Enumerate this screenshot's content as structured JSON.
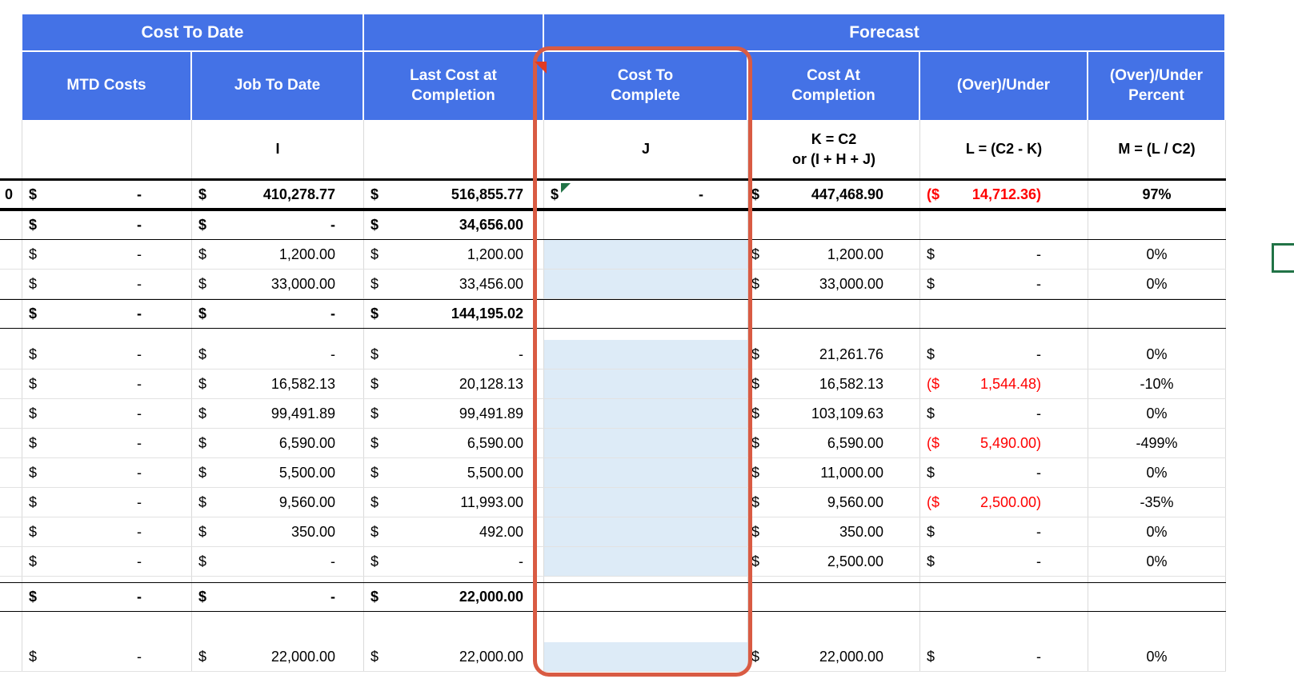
{
  "colors": {
    "header_blue": "#4472E6",
    "cell_blue": "#DDEBF7",
    "annotation_red": "#D95B43",
    "negative_red": "#FF0000",
    "selection_green": "#217346"
  },
  "header": {
    "groups": {
      "cost_to_date": "Cost To Date",
      "forecast": "Forecast"
    },
    "columns": {
      "mtd": "MTD Costs",
      "jtd": "Job To Date",
      "lcac": "Last Cost at\nCompletion",
      "ctc": "Cost To\nComplete",
      "cac": "Cost At\nCompletion",
      "ou": "(Over)/Under",
      "oup": "(Over)/Under\nPercent"
    }
  },
  "formula_row": {
    "i": "I",
    "j": "J",
    "k": "K = C2\nor (I + H + J)",
    "l": "L = (C2 - K)",
    "m": "M = (L / C2)"
  },
  "rows": [
    {
      "type": "total",
      "left": "0",
      "ou_red": true,
      "cells": {
        "mtd": [
          "$",
          "-"
        ],
        "jtd": [
          "$",
          "410,278.77"
        ],
        "lcac": [
          "$",
          "516,855.77"
        ],
        "ctc": [
          "$",
          "-"
        ],
        "cac": [
          "$",
          "447,468.90"
        ],
        "ou": [
          "($",
          "14,712.36)"
        ],
        "pct": "97%"
      }
    },
    {
      "type": "subtotal",
      "cells": {
        "mtd": [
          "$",
          "-"
        ],
        "jtd": [
          "$",
          "-"
        ],
        "lcac": [
          "$",
          "34,656.00"
        ]
      }
    },
    {
      "type": "detail",
      "cells": {
        "mtd": [
          "$",
          "-"
        ],
        "jtd": [
          "$",
          "1,200.00"
        ],
        "lcac": [
          "$",
          "1,200.00"
        ],
        "cac": [
          "$",
          "1,200.00"
        ],
        "ou": [
          "$",
          "-"
        ],
        "pct": "0%"
      }
    },
    {
      "type": "detail",
      "cells": {
        "mtd": [
          "$",
          "-"
        ],
        "jtd": [
          "$",
          "33,000.00"
        ],
        "lcac": [
          "$",
          "33,456.00"
        ],
        "cac": [
          "$",
          "33,000.00"
        ],
        "ou": [
          "$",
          "-"
        ],
        "pct": "0%"
      }
    },
    {
      "type": "subtotal",
      "cells": {
        "mtd": [
          "$",
          "-"
        ],
        "jtd": [
          "$",
          "-"
        ],
        "lcac": [
          "$",
          "144,195.02"
        ]
      }
    },
    {
      "type": "spacer",
      "height": 14
    },
    {
      "type": "detail",
      "cells": {
        "mtd": [
          "$",
          "-"
        ],
        "jtd": [
          "$",
          "-"
        ],
        "lcac": [
          "$",
          "-"
        ],
        "cac": [
          "$",
          "21,261.76"
        ],
        "ou": [
          "$",
          "-"
        ],
        "pct": "0%"
      }
    },
    {
      "type": "detail",
      "ou_red": true,
      "cells": {
        "mtd": [
          "$",
          "-"
        ],
        "jtd": [
          "$",
          "16,582.13"
        ],
        "lcac": [
          "$",
          "20,128.13"
        ],
        "cac": [
          "$",
          "16,582.13"
        ],
        "ou": [
          "($",
          "1,544.48)"
        ],
        "pct": "-10%"
      }
    },
    {
      "type": "detail",
      "cells": {
        "mtd": [
          "$",
          "-"
        ],
        "jtd": [
          "$",
          "99,491.89"
        ],
        "lcac": [
          "$",
          "99,491.89"
        ],
        "cac": [
          "$",
          "103,109.63"
        ],
        "ou": [
          "$",
          "-"
        ],
        "pct": "0%"
      }
    },
    {
      "type": "detail",
      "ou_red": true,
      "cells": {
        "mtd": [
          "$",
          "-"
        ],
        "jtd": [
          "$",
          "6,590.00"
        ],
        "lcac": [
          "$",
          "6,590.00"
        ],
        "cac": [
          "$",
          "6,590.00"
        ],
        "ou": [
          "($",
          "5,490.00)"
        ],
        "pct": "-499%"
      }
    },
    {
      "type": "detail",
      "cells": {
        "mtd": [
          "$",
          "-"
        ],
        "jtd": [
          "$",
          "5,500.00"
        ],
        "lcac": [
          "$",
          "5,500.00"
        ],
        "cac": [
          "$",
          "11,000.00"
        ],
        "ou": [
          "$",
          "-"
        ],
        "pct": "0%"
      }
    },
    {
      "type": "detail",
      "ou_red": true,
      "cells": {
        "mtd": [
          "$",
          "-"
        ],
        "jtd": [
          "$",
          "9,560.00"
        ],
        "lcac": [
          "$",
          "11,993.00"
        ],
        "cac": [
          "$",
          "9,560.00"
        ],
        "ou": [
          "($",
          "2,500.00)"
        ],
        "pct": "-35%"
      }
    },
    {
      "type": "detail",
      "cells": {
        "mtd": [
          "$",
          "-"
        ],
        "jtd": [
          "$",
          "350.00"
        ],
        "lcac": [
          "$",
          "492.00"
        ],
        "cac": [
          "$",
          "350.00"
        ],
        "ou": [
          "$",
          "-"
        ],
        "pct": "0%"
      }
    },
    {
      "type": "detail",
      "cells": {
        "mtd": [
          "$",
          "-"
        ],
        "jtd": [
          "$",
          "-"
        ],
        "lcac": [
          "$",
          "-"
        ],
        "cac": [
          "$",
          "2,500.00"
        ],
        "ou": [
          "$",
          "-"
        ],
        "pct": "0%"
      }
    },
    {
      "type": "spacer",
      "height": 7
    },
    {
      "type": "subtotal",
      "cells": {
        "mtd": [
          "$",
          "-"
        ],
        "jtd": [
          "$",
          "-"
        ],
        "lcac": [
          "$",
          "22,000.00"
        ]
      }
    },
    {
      "type": "spacer",
      "height": 38
    },
    {
      "type": "detail",
      "cells": {
        "mtd": [
          "$",
          "-"
        ],
        "jtd": [
          "$",
          "22,000.00"
        ],
        "lcac": [
          "$",
          "22,000.00"
        ],
        "cac": [
          "$",
          "22,000.00"
        ],
        "ou": [
          "$",
          "-"
        ],
        "pct": "0%"
      }
    }
  ]
}
